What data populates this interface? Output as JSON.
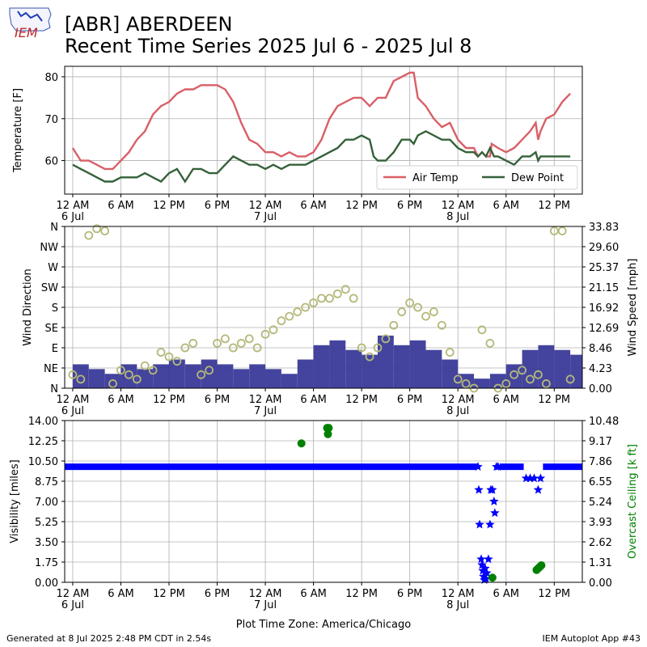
{
  "header": {
    "title_line1": "[ABR] ABERDEEN",
    "title_line2": "Recent Time Series 2025 Jul 6 - 2025 Jul 8",
    "logo_text": "IEM"
  },
  "footer": {
    "generated": "Generated at 8 Jul 2025 2:48 PM CDT in 2.54s",
    "app": "IEM Autoplot App #43"
  },
  "colors": {
    "air_temp": "#d95f67",
    "dew_point": "#356139",
    "wind_speed_bar": "#3a3a99",
    "wind_dir": "#b5b878",
    "visibility": "#0000ff",
    "ceiling": "#008000",
    "grid": "#b0b0b0"
  },
  "chart_data": [
    {
      "type": "line",
      "name": "temperature",
      "ylabel": "Temperature [F]",
      "ylim": [
        52,
        82.5
      ],
      "yticks": [
        60,
        70,
        80
      ],
      "xlim_hours": [
        -1,
        63.5
      ],
      "xticks": [
        "12 AM",
        "6 AM",
        "12 PM",
        "6 PM",
        "12 AM",
        "6 AM",
        "12 PM",
        "6 PM",
        "12 AM",
        "6 AM",
        "12 PM"
      ],
      "date_labels": [
        "6 Jul",
        "7 Jul",
        "8 Jul"
      ],
      "grid": true,
      "legend": "lower right",
      "series": [
        {
          "name": "Air Temp",
          "color": "#d95f67",
          "points": [
            [
              0,
              63
            ],
            [
              1,
              60
            ],
            [
              2,
              60
            ],
            [
              3,
              59
            ],
            [
              4,
              58
            ],
            [
              5,
              58
            ],
            [
              6,
              60
            ],
            [
              7,
              62
            ],
            [
              8,
              65
            ],
            [
              9,
              67
            ],
            [
              10,
              71
            ],
            [
              11,
              73
            ],
            [
              12,
              74
            ],
            [
              13,
              76
            ],
            [
              14,
              77
            ],
            [
              15,
              77
            ],
            [
              16,
              78
            ],
            [
              17,
              78
            ],
            [
              18,
              78
            ],
            [
              19,
              77
            ],
            [
              20,
              74
            ],
            [
              21,
              69
            ],
            [
              22,
              65
            ],
            [
              23,
              64
            ],
            [
              24,
              62
            ],
            [
              25,
              62
            ],
            [
              26,
              61
            ],
            [
              27,
              62
            ],
            [
              28,
              61
            ],
            [
              29,
              61
            ],
            [
              30,
              62
            ],
            [
              31,
              65
            ],
            [
              32,
              70
            ],
            [
              33,
              73
            ],
            [
              34,
              74
            ],
            [
              35,
              75
            ],
            [
              36,
              75
            ],
            [
              37,
              73
            ],
            [
              38,
              75
            ],
            [
              39,
              75
            ],
            [
              40,
              79
            ],
            [
              41,
              80
            ],
            [
              42,
              81
            ],
            [
              42.5,
              81
            ],
            [
              43,
              75
            ],
            [
              44,
              73
            ],
            [
              45,
              70
            ],
            [
              46,
              68
            ],
            [
              47,
              69
            ],
            [
              48,
              65
            ],
            [
              49,
              63
            ],
            [
              50,
              63
            ],
            [
              50.5,
              61
            ],
            [
              51,
              62
            ],
            [
              51.5,
              61
            ],
            [
              52,
              61
            ],
            [
              52.2,
              64
            ],
            [
              53,
              63
            ],
            [
              54,
              62
            ],
            [
              55,
              63
            ],
            [
              56,
              65
            ],
            [
              57,
              67
            ],
            [
              57.7,
              69
            ],
            [
              58,
              65
            ],
            [
              58.3,
              67
            ],
            [
              59,
              70
            ],
            [
              60,
              71
            ],
            [
              61,
              74
            ],
            [
              62,
              76
            ]
          ]
        },
        {
          "name": "Dew Point",
          "color": "#356139",
          "points": [
            [
              0,
              59
            ],
            [
              1,
              58
            ],
            [
              2,
              57
            ],
            [
              3,
              56
            ],
            [
              4,
              55
            ],
            [
              5,
              55
            ],
            [
              6,
              56
            ],
            [
              7,
              56
            ],
            [
              8,
              56
            ],
            [
              9,
              57
            ],
            [
              10,
              56
            ],
            [
              11,
              55
            ],
            [
              12,
              57
            ],
            [
              13,
              58
            ],
            [
              14,
              55
            ],
            [
              15,
              58
            ],
            [
              16,
              58
            ],
            [
              17,
              57
            ],
            [
              18,
              57
            ],
            [
              19,
              59
            ],
            [
              20,
              61
            ],
            [
              21,
              60
            ],
            [
              22,
              59
            ],
            [
              23,
              59
            ],
            [
              24,
              58
            ],
            [
              25,
              59
            ],
            [
              26,
              58
            ],
            [
              27,
              59
            ],
            [
              28,
              59
            ],
            [
              29,
              59
            ],
            [
              30,
              60
            ],
            [
              31,
              61
            ],
            [
              32,
              62
            ],
            [
              33,
              63
            ],
            [
              34,
              65
            ],
            [
              35,
              65
            ],
            [
              36,
              66
            ],
            [
              37,
              65
            ],
            [
              37.5,
              61
            ],
            [
              38,
              60
            ],
            [
              39,
              60
            ],
            [
              40,
              62
            ],
            [
              41,
              65
            ],
            [
              42,
              65
            ],
            [
              42.5,
              64
            ],
            [
              43,
              66
            ],
            [
              44,
              67
            ],
            [
              45,
              66
            ],
            [
              46,
              65
            ],
            [
              47,
              65
            ],
            [
              48,
              63
            ],
            [
              49,
              62
            ],
            [
              50,
              62
            ],
            [
              50.5,
              61
            ],
            [
              51,
              62
            ],
            [
              51.5,
              61
            ],
            [
              52,
              63
            ],
            [
              52.5,
              61
            ],
            [
              53,
              61
            ],
            [
              54,
              60
            ],
            [
              55,
              59
            ],
            [
              56,
              61
            ],
            [
              57,
              61
            ],
            [
              57.7,
              62
            ],
            [
              58,
              60
            ],
            [
              58.3,
              61
            ],
            [
              59,
              61
            ],
            [
              60,
              61
            ],
            [
              61,
              61
            ],
            [
              62,
              61
            ]
          ]
        }
      ]
    },
    {
      "type": "bar+scatter",
      "name": "wind",
      "ylabel": "Wind Direction",
      "ylabel_right": "Wind Speed [mph]",
      "ylim_direction": [
        0,
        360
      ],
      "direction_ticks": [
        "N",
        "NE",
        "E",
        "SE",
        "S",
        "SW",
        "W",
        "NW",
        "N"
      ],
      "ylim_speed": [
        0,
        33.83
      ],
      "speed_ticks": [
        "0.00",
        "4.23",
        "8.46",
        "12.69",
        "16.92",
        "21.15",
        "25.37",
        "29.60",
        "33.83"
      ],
      "grid": true,
      "wind_speed_mph": [
        [
          0,
          5
        ],
        [
          2,
          4
        ],
        [
          4,
          3
        ],
        [
          6,
          5
        ],
        [
          8,
          4
        ],
        [
          10,
          5
        ],
        [
          12,
          6
        ],
        [
          14,
          5
        ],
        [
          16,
          6
        ],
        [
          18,
          5
        ],
        [
          20,
          4
        ],
        [
          22,
          5
        ],
        [
          24,
          4
        ],
        [
          26,
          3
        ],
        [
          28,
          6
        ],
        [
          30,
          9
        ],
        [
          32,
          10
        ],
        [
          34,
          8
        ],
        [
          36,
          7
        ],
        [
          38,
          11
        ],
        [
          40,
          9
        ],
        [
          42,
          10
        ],
        [
          44,
          8
        ],
        [
          46,
          6
        ],
        [
          48,
          3
        ],
        [
          50,
          2
        ],
        [
          52,
          3
        ],
        [
          54,
          5
        ],
        [
          56,
          8
        ],
        [
          58,
          9
        ],
        [
          60,
          8
        ],
        [
          62,
          7
        ]
      ],
      "wind_direction_deg": [
        [
          0,
          30
        ],
        [
          1,
          20
        ],
        [
          2,
          340
        ],
        [
          3,
          355
        ],
        [
          4,
          350
        ],
        [
          5,
          10
        ],
        [
          6,
          40
        ],
        [
          7,
          30
        ],
        [
          8,
          20
        ],
        [
          9,
          50
        ],
        [
          10,
          40
        ],
        [
          11,
          80
        ],
        [
          12,
          70
        ],
        [
          13,
          60
        ],
        [
          14,
          90
        ],
        [
          15,
          100
        ],
        [
          16,
          30
        ],
        [
          17,
          40
        ],
        [
          18,
          100
        ],
        [
          19,
          110
        ],
        [
          20,
          90
        ],
        [
          21,
          100
        ],
        [
          22,
          110
        ],
        [
          23,
          90
        ],
        [
          24,
          120
        ],
        [
          25,
          130
        ],
        [
          26,
          150
        ],
        [
          27,
          160
        ],
        [
          28,
          170
        ],
        [
          29,
          180
        ],
        [
          30,
          190
        ],
        [
          31,
          200
        ],
        [
          32,
          200
        ],
        [
          33,
          210
        ],
        [
          34,
          220
        ],
        [
          35,
          200
        ],
        [
          36,
          90
        ],
        [
          37,
          70
        ],
        [
          38,
          90
        ],
        [
          39,
          110
        ],
        [
          40,
          140
        ],
        [
          41,
          170
        ],
        [
          42,
          190
        ],
        [
          43,
          180
        ],
        [
          44,
          160
        ],
        [
          45,
          170
        ],
        [
          46,
          140
        ],
        [
          47,
          80
        ],
        [
          48,
          20
        ],
        [
          49,
          10
        ],
        [
          50,
          0
        ],
        [
          51,
          130
        ],
        [
          52,
          100
        ],
        [
          53,
          0
        ],
        [
          54,
          10
        ],
        [
          55,
          30
        ],
        [
          56,
          40
        ],
        [
          57,
          20
        ],
        [
          58,
          30
        ],
        [
          59,
          10
        ],
        [
          60,
          350
        ],
        [
          61,
          350
        ],
        [
          62,
          20
        ]
      ]
    },
    {
      "type": "scatter",
      "name": "visibility",
      "ylabel": "Visibility [miles]",
      "ylabel_right": "Overcast Ceiling [k ft]",
      "ylim": [
        0,
        14
      ],
      "yticks": [
        "0.00",
        "1.75",
        "3.50",
        "5.25",
        "7.00",
        "8.75",
        "10.50",
        "12.25",
        "14.00"
      ],
      "ylim_right": [
        0,
        10.48
      ],
      "yticks_right": [
        "0.00",
        "1.31",
        "2.62",
        "3.93",
        "5.24",
        "6.55",
        "7.86",
        "9.17",
        "10.48"
      ],
      "xlabel": "Plot Time Zone: America/Chicago",
      "grid": true,
      "visibility_baseline": 10,
      "visibility_points": [
        [
          50.5,
          10
        ],
        [
          50.6,
          8
        ],
        [
          50.7,
          5
        ],
        [
          50.9,
          2
        ],
        [
          51.0,
          1.5
        ],
        [
          51.1,
          1
        ],
        [
          51.2,
          0.5
        ],
        [
          51.3,
          0.2
        ],
        [
          51.4,
          1.2
        ],
        [
          51.5,
          0.3
        ],
        [
          51.6,
          0.8
        ],
        [
          51.8,
          2
        ],
        [
          52.0,
          5
        ],
        [
          52.1,
          8
        ],
        [
          52.3,
          8
        ],
        [
          52.5,
          7
        ],
        [
          52.6,
          6
        ],
        [
          52.8,
          10
        ],
        [
          53.0,
          10
        ],
        [
          56.5,
          9
        ],
        [
          57.0,
          9
        ],
        [
          57.5,
          9
        ],
        [
          58.0,
          8
        ],
        [
          58.3,
          9
        ]
      ],
      "ceiling_kft": [
        [
          28.5,
          9.0
        ],
        [
          31.7,
          10.0
        ],
        [
          31.8,
          9.6
        ],
        [
          31.9,
          10.0
        ],
        [
          52.3,
          0.3
        ],
        [
          57.8,
          0.8
        ],
        [
          58.0,
          0.9
        ],
        [
          58.2,
          1.0
        ],
        [
          58.4,
          1.1
        ]
      ]
    }
  ]
}
